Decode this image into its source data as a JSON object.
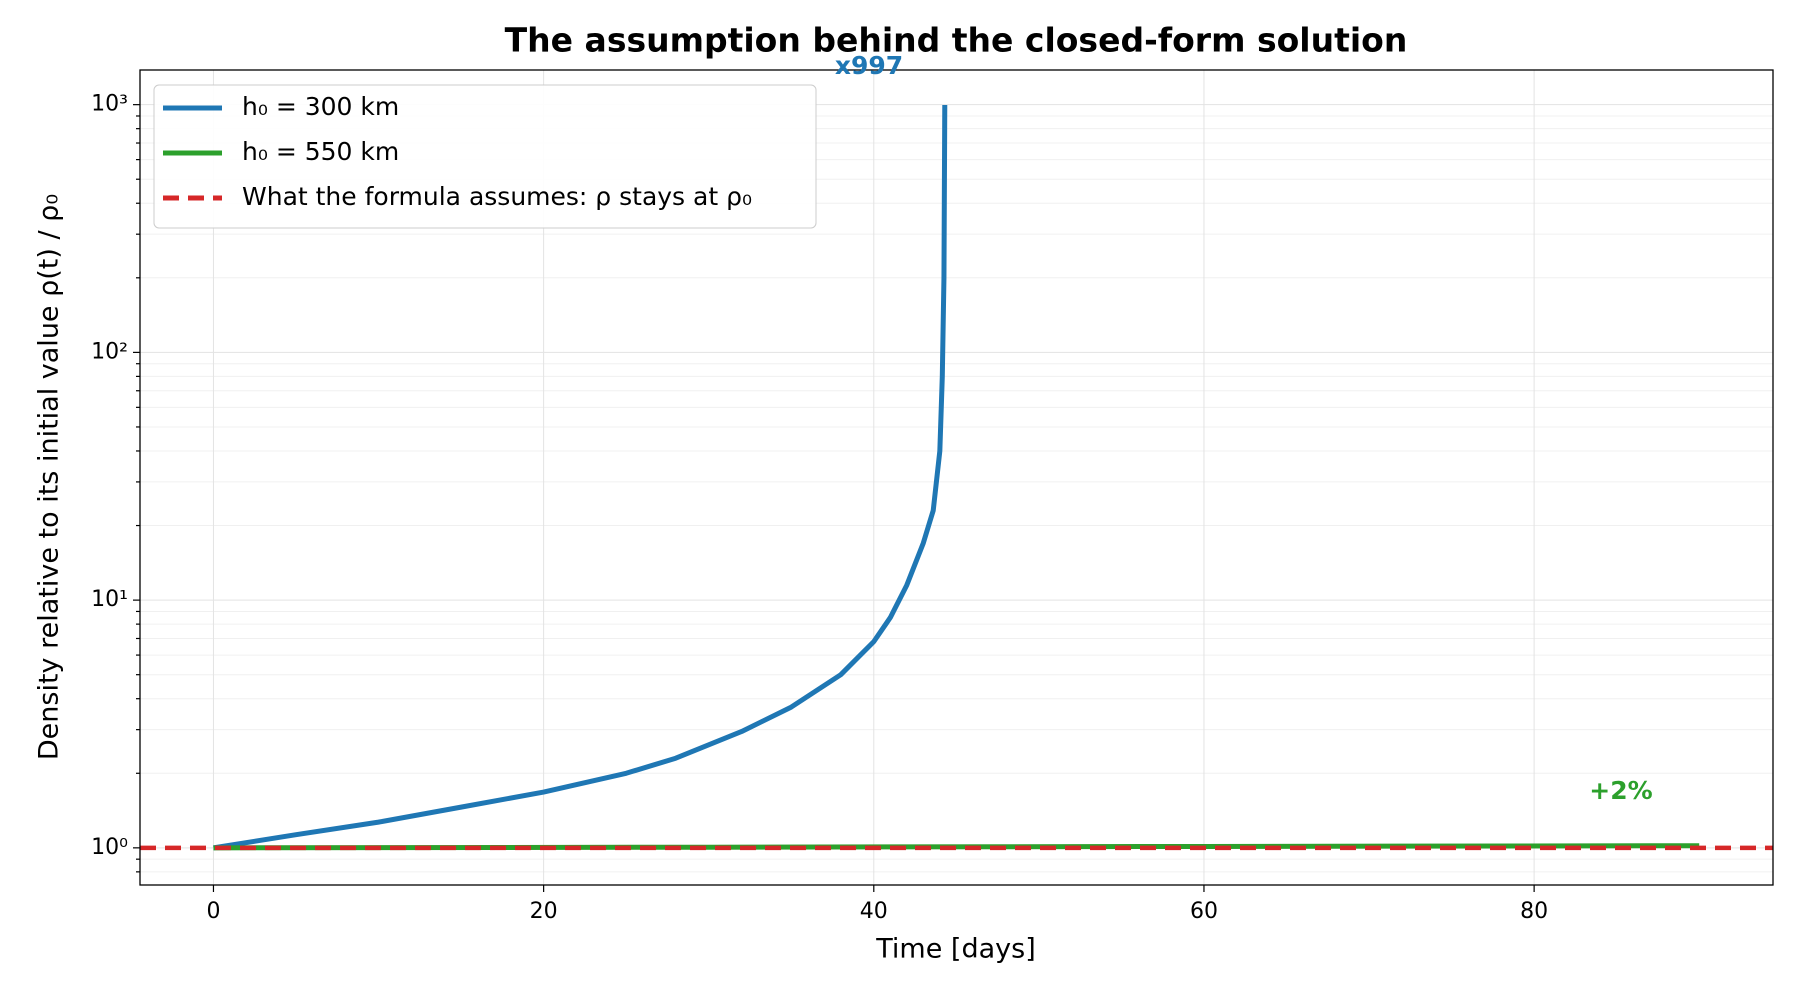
{
  "chart_data": {
    "type": "line",
    "title": "The assumption behind the closed-form solution",
    "xlabel": "Time [days]",
    "ylabel": "Density relative to its initial value  ρ(t) / ρ₀",
    "log_y": true,
    "grid": true,
    "legend": "upper left",
    "xlim": [
      -4.45,
      94.47
    ],
    "ylim": [
      0.708,
      1380
    ],
    "xticks": [
      0,
      20,
      40,
      60,
      80
    ],
    "yticks": [
      {
        "value": 1,
        "label": "10⁰"
      },
      {
        "value": 10,
        "label": "10¹"
      },
      {
        "value": 100,
        "label": "10²"
      },
      {
        "value": 1000,
        "label": "10³"
      }
    ],
    "yticks_minor": [
      0.8,
      0.9,
      2,
      3,
      4,
      5,
      6,
      7,
      8,
      9,
      20,
      30,
      40,
      50,
      60,
      70,
      80,
      90,
      200,
      300,
      400,
      500,
      600,
      700,
      800,
      900
    ],
    "series": [
      {
        "name": "h₀ = 300 km",
        "color": "#1f77b4",
        "linestyle": "solid",
        "x": [
          0,
          5,
          10,
          15,
          20,
          25,
          28,
          32,
          35,
          38,
          40,
          41,
          42,
          43,
          43.6,
          44,
          44.15,
          44.25,
          44.3
        ],
        "values": [
          1,
          1.13,
          1.27,
          1.46,
          1.68,
          2.0,
          2.3,
          2.95,
          3.7,
          5.0,
          6.8,
          8.5,
          11.5,
          17,
          23,
          40,
          80,
          200,
          997
        ]
      },
      {
        "name": "h₀ = 550 km",
        "color": "#2ca02c",
        "linestyle": "solid",
        "x": [
          0,
          30,
          60,
          90
        ],
        "values": [
          1,
          1.006,
          1.013,
          1.02
        ]
      },
      {
        "name": "What the formula assumes: ρ stays at ρ₀",
        "color": "#d62728",
        "linestyle": "dashed",
        "x": [
          -4.45,
          94.47
        ],
        "values": [
          1,
          1
        ]
      }
    ],
    "annotations": [
      {
        "text": "x997",
        "color": "#1f77b4"
      },
      {
        "text": "+2%",
        "color": "#2ca02c"
      }
    ]
  }
}
